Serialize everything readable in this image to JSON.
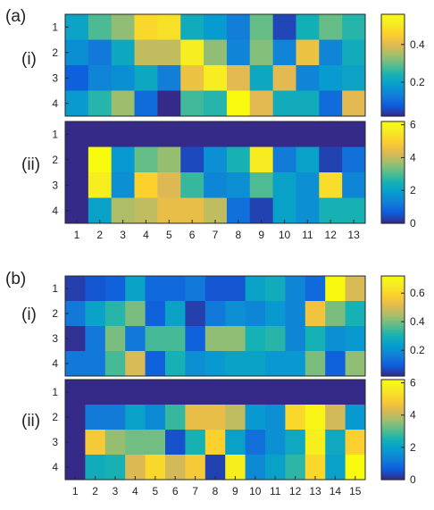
{
  "figure": {
    "panel_a_label": "(a)",
    "panel_b_label": "(b)",
    "sub_i_label": "(i)",
    "sub_ii_label": "(ii)"
  },
  "chart_data": [
    {
      "id": "a-i",
      "type": "heatmap",
      "rows": [
        "1",
        "2",
        "3",
        "4"
      ],
      "cols": [
        "1",
        "2",
        "3",
        "4",
        "5",
        "6",
        "7",
        "8",
        "9",
        "10",
        "11",
        "12",
        "13"
      ],
      "values": [
        [
          0.2,
          0.28,
          0.33,
          0.47,
          0.49,
          0.22,
          0.18,
          0.13,
          0.3,
          0.05,
          0.23,
          0.3,
          0.25
        ],
        [
          0.16,
          0.12,
          0.21,
          0.37,
          0.37,
          0.52,
          0.33,
          0.14,
          0.32,
          0.14,
          0.42,
          0.14,
          0.22
        ],
        [
          0.08,
          0.14,
          0.16,
          0.21,
          0.13,
          0.42,
          0.52,
          0.4,
          0.21,
          0.4,
          0.14,
          0.18,
          0.2
        ],
        [
          0.18,
          0.25,
          0.34,
          0.1,
          0.02,
          0.27,
          0.25,
          0.56,
          0.4,
          0.22,
          0.22,
          0.1,
          0.4
        ]
      ],
      "colorbar": {
        "min": 0.02,
        "max": 0.56,
        "ticks": [
          0.2,
          0.4
        ]
      },
      "colormap": "parula"
    },
    {
      "id": "a-ii",
      "type": "heatmap",
      "rows": [
        "1",
        "2",
        "3",
        "4"
      ],
      "cols": [
        "1",
        "2",
        "3",
        "4",
        "5",
        "6",
        "7",
        "8",
        "9",
        "10",
        "11",
        "12",
        "13"
      ],
      "values": [
        [
          0,
          0,
          0,
          0,
          0,
          0,
          0,
          0,
          0,
          0,
          0,
          0,
          0
        ],
        [
          0,
          6.2,
          1.8,
          3.2,
          3.6,
          0.4,
          1.6,
          2.5,
          5.7,
          1.2,
          2.0,
          0.3,
          1.0
        ],
        [
          0,
          5.8,
          1.6,
          5.0,
          4.3,
          2.8,
          1.4,
          1.6,
          3.0,
          2.0,
          1.6,
          5.3,
          1.4
        ],
        [
          0,
          2.0,
          3.8,
          4.0,
          4.5,
          4.5,
          4.0,
          1.0,
          0.3,
          2.0,
          1.6,
          2.5,
          2.5
        ]
      ],
      "colorbar": {
        "min": 0,
        "max": 6.2,
        "ticks": [
          0,
          2,
          4,
          6
        ]
      },
      "colormap": "parula",
      "x_ticks": [
        "1",
        "2",
        "3",
        "4",
        "5",
        "6",
        "7",
        "8",
        "9",
        "10",
        "11",
        "12",
        "13"
      ]
    },
    {
      "id": "b-i",
      "type": "heatmap",
      "rows": [
        "1",
        "2",
        "3",
        "4"
      ],
      "cols": [
        "1",
        "2",
        "3",
        "4",
        "5",
        "6",
        "7",
        "8",
        "9",
        "10",
        "11",
        "12",
        "13",
        "14",
        "15"
      ],
      "values": [
        [
          0.05,
          0.08,
          0.1,
          0.25,
          0.12,
          0.12,
          0.15,
          0.08,
          0.08,
          0.25,
          0.28,
          0.18,
          0.12,
          0.71,
          0.5
        ],
        [
          0.15,
          0.25,
          0.32,
          0.4,
          0.1,
          0.25,
          0.05,
          0.15,
          0.2,
          0.18,
          0.22,
          0.18,
          0.55,
          0.4,
          0.3
        ],
        [
          0.03,
          0.15,
          0.4,
          0.15,
          0.35,
          0.35,
          0.1,
          0.42,
          0.42,
          0.3,
          0.32,
          0.18,
          0.3,
          0.2,
          0.22
        ],
        [
          0.15,
          0.15,
          0.35,
          0.5,
          0.1,
          0.3,
          0.2,
          0.22,
          0.25,
          0.25,
          0.22,
          0.22,
          0.4,
          0.1,
          0.42
        ]
      ],
      "colorbar": {
        "min": 0.02,
        "max": 0.72,
        "ticks": [
          0.2,
          0.4,
          0.6
        ]
      },
      "colormap": "parula"
    },
    {
      "id": "b-ii",
      "type": "heatmap",
      "rows": [
        "1",
        "2",
        "3",
        "4"
      ],
      "cols": [
        "1",
        "2",
        "3",
        "4",
        "5",
        "6",
        "7",
        "8",
        "9",
        "10",
        "11",
        "12",
        "13",
        "14",
        "15"
      ],
      "values": [
        [
          0,
          0,
          0,
          0,
          0,
          0,
          0,
          0,
          0,
          0,
          0,
          0,
          0,
          0,
          0
        ],
        [
          0,
          1.2,
          1.2,
          2.0,
          1.5,
          2.8,
          4.5,
          4.5,
          4.0,
          1.8,
          1.6,
          5.2,
          6.0,
          4.2,
          1.8
        ],
        [
          0,
          4.8,
          3.6,
          3.3,
          3.3,
          0.5,
          2.5,
          5.0,
          2.0,
          1.0,
          1.6,
          2.2,
          5.8,
          2.2,
          5.0
        ],
        [
          0,
          2.3,
          2.5,
          4.3,
          5.2,
          4.2,
          4.8,
          0.3,
          5.8,
          1.5,
          2.0,
          2.7,
          5.2,
          2.0,
          6.2
        ]
      ],
      "colorbar": {
        "min": 0,
        "max": 6.2,
        "ticks": [
          0,
          2,
          4,
          6
        ]
      },
      "colormap": "parula",
      "x_ticks": [
        "1",
        "2",
        "3",
        "4",
        "5",
        "6",
        "7",
        "8",
        "9",
        "10",
        "11",
        "12",
        "13",
        "14",
        "15"
      ]
    }
  ]
}
